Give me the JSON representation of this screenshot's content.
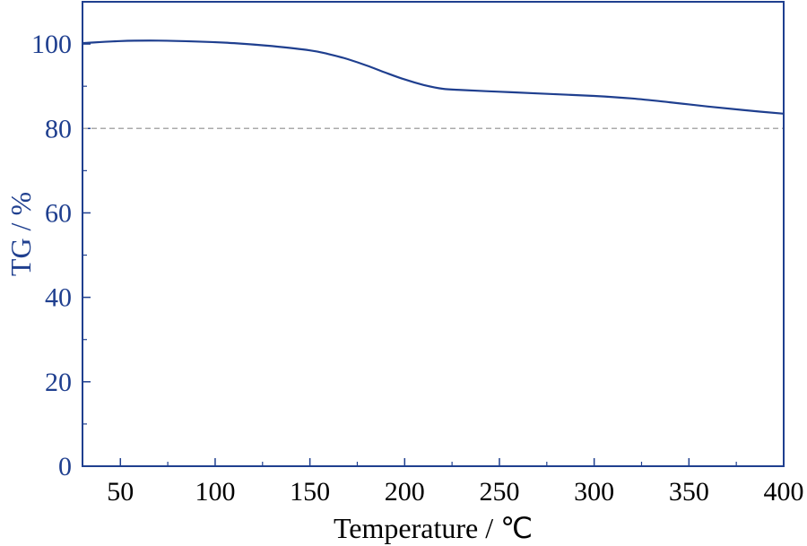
{
  "chart_data": {
    "type": "line",
    "title": "",
    "xlabel": "Temperature / ℃",
    "ylabel": "TG / %",
    "xlim": [
      30,
      400
    ],
    "ylim": [
      0,
      110
    ],
    "x_ticks": [
      50,
      100,
      150,
      200,
      250,
      300,
      350,
      400
    ],
    "y_ticks": [
      0,
      20,
      40,
      60,
      80,
      100
    ],
    "x_minor_ticks": [
      75,
      125,
      175,
      225,
      275,
      325,
      375
    ],
    "y_minor_ticks": [
      10,
      30,
      50,
      70,
      90
    ],
    "reference_line": {
      "y": 80,
      "style": "dashed",
      "color": "#aaaaaa"
    },
    "grid": false,
    "legend": "none",
    "colors": {
      "series": "#1f3f8f",
      "axis_text": "#1f3f8f",
      "axis_frame": "#1f3f8f",
      "xlabel": "#000000"
    },
    "series": [
      {
        "x": [
          30,
          50,
          70,
          90,
          110,
          130,
          150,
          160,
          170,
          180,
          190,
          200,
          210,
          220,
          230,
          250,
          270,
          300,
          320,
          340,
          360,
          380,
          400
        ],
        "y": [
          100.2,
          100.7,
          100.8,
          100.6,
          100.2,
          99.5,
          98.5,
          97.6,
          96.4,
          94.9,
          93.2,
          91.6,
          90.3,
          89.4,
          89.1,
          88.7,
          88.3,
          87.7,
          87.1,
          86.2,
          85.2,
          84.3,
          83.5
        ]
      }
    ]
  }
}
